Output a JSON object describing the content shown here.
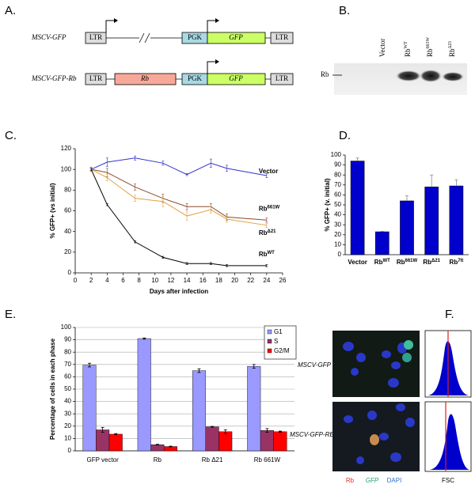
{
  "panel_labels": [
    "A.",
    "B.",
    "C.",
    "D.",
    "E.",
    "F."
  ],
  "constructs": [
    {
      "name": "MSCV-GFP",
      "parts": [
        "LTR",
        "PGK",
        "GFP",
        "LTR"
      ]
    },
    {
      "name": "MSCV-GFP-Rb",
      "parts": [
        "LTR",
        "Rb",
        "PGK",
        "GFP",
        "LTR"
      ]
    }
  ],
  "blot": {
    "row_label": "Rb",
    "lanes": [
      {
        "name": "Vector"
      },
      {
        "name": "Rb",
        "sup": "WT"
      },
      {
        "name": "Rb",
        "sup": "661W"
      },
      {
        "name": "Rb",
        "sup": "Δ21"
      }
    ]
  },
  "images": {
    "rows": [
      "MSCV-GFP",
      "MSCV-GFP-RB"
    ],
    "channels": [
      "Rb",
      "GFP",
      "DAPI"
    ],
    "histogram_label": "FSC"
  },
  "chart_data": [
    {
      "type": "line",
      "x_label": "Days after infection",
      "y_label": "% GFP+ (vs initial)",
      "x": [
        2,
        4,
        7.5,
        11,
        14,
        17,
        19,
        24
      ],
      "series": [
        {
          "name": "Vector",
          "color": "#3333cc",
          "values": [
            100,
            107,
            111,
            106,
            95,
            106,
            101,
            94
          ],
          "errors": [
            2,
            4,
            2,
            2,
            1,
            4,
            3,
            2
          ]
        },
        {
          "name": "Rb",
          "sup": "661W",
          "color": "#8b4a2b",
          "values": [
            100,
            97,
            83,
            72,
            64,
            64,
            54,
            51
          ],
          "errors": [
            2,
            4,
            3,
            4,
            3,
            3,
            3,
            2
          ]
        },
        {
          "name": "Rb",
          "sup": "Δ21",
          "color": "#e0a040",
          "values": [
            100,
            92,
            72,
            69,
            55,
            61,
            52,
            46
          ],
          "errors": [
            2,
            3,
            3,
            5,
            4,
            3,
            3,
            2
          ]
        },
        {
          "name": "Rb",
          "sup": "WT",
          "color": "#000000",
          "values": [
            100,
            66,
            30,
            15,
            9,
            9,
            7,
            7
          ],
          "errors": [
            1,
            1,
            1,
            1,
            1,
            1,
            1,
            1
          ]
        }
      ],
      "xlim": [
        0,
        26
      ],
      "xticks": [
        0,
        2,
        4,
        6,
        8,
        10,
        12,
        14,
        16,
        18,
        20,
        22,
        24,
        26
      ],
      "ylim": [
        0,
        120
      ],
      "yticks": [
        0,
        20,
        40,
        60,
        80,
        100,
        120
      ],
      "grid": false
    },
    {
      "type": "bar",
      "y_label": "% GFP+ (v. initial)",
      "categories": [
        "Vector",
        "Rb",
        "Rb",
        "Rb",
        "Rb"
      ],
      "category_sups": [
        null,
        "WT",
        "661W",
        "Δ21",
        "7lt"
      ],
      "values": [
        94,
        23,
        54,
        68,
        69
      ],
      "errors": [
        3,
        0.5,
        5,
        12,
        6
      ],
      "color": "#0000cc",
      "ylim": [
        0,
        100
      ],
      "yticks": [
        0,
        10,
        20,
        30,
        40,
        50,
        60,
        70,
        80,
        90,
        100
      ],
      "grid": false
    },
    {
      "type": "grouped_bar",
      "y_label": "Percentage of cells in each phase",
      "categories": [
        "GFP vector",
        "Rb",
        "Rb Δ21",
        "Rb 661W"
      ],
      "series": [
        {
          "name": "G1",
          "color": "#9999ff",
          "values": [
            69.5,
            91,
            65,
            68.5
          ],
          "errors": [
            1.5,
            0.5,
            1.5,
            1.5
          ]
        },
        {
          "name": "S",
          "color": "#993366",
          "values": [
            17,
            5,
            19.5,
            16.5
          ],
          "errors": [
            2,
            0.3,
            0.3,
            1.5
          ]
        },
        {
          "name": "G2/M",
          "color": "#ff0000",
          "values": [
            13.5,
            3.5,
            15.5,
            15.5
          ],
          "errors": [
            0.5,
            0.3,
            1.5,
            0.5
          ]
        }
      ],
      "ylim": [
        0,
        100
      ],
      "yticks": [
        0,
        10,
        20,
        30,
        40,
        50,
        60,
        70,
        80,
        90,
        100
      ],
      "grid": true,
      "legend": "top-right"
    }
  ]
}
